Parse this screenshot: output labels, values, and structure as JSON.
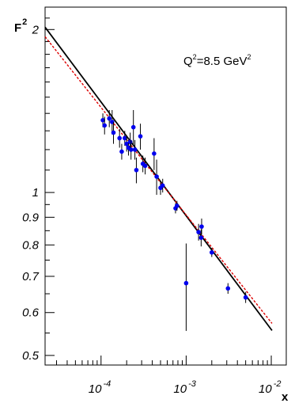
{
  "chart_data": {
    "type": "scatter",
    "title": "",
    "annotation": {
      "base": "Q",
      "sup": "2",
      "rest": "=8.5 GeV",
      "sup2": "2"
    },
    "xlabel": "x",
    "ylabel": {
      "base": "F",
      "sub": "2"
    },
    "x_scale": "log",
    "y_scale": "log",
    "xlim": [
      2.2e-05,
      0.015
    ],
    "ylim": [
      0.48,
      2.2
    ],
    "x_major_ticks": [
      {
        "value": 0.0001,
        "base": "10",
        "exp": "-4"
      },
      {
        "value": 0.001,
        "base": "10",
        "exp": "-3"
      },
      {
        "value": 0.01,
        "base": "10",
        "exp": "-2"
      }
    ],
    "y_tick_labels": [
      {
        "value": 2,
        "label": "2"
      },
      {
        "value": 1,
        "label": "1"
      },
      {
        "value": 0.9,
        "label": "0.9"
      },
      {
        "value": 0.8,
        "label": "0.8"
      },
      {
        "value": 0.7,
        "label": "0.7"
      },
      {
        "value": 0.6,
        "label": "0.6"
      },
      {
        "value": 0.5,
        "label": "0.5"
      }
    ],
    "grid": false,
    "series": [
      {
        "kind": "points",
        "color": "#0000ee",
        "points": [
          {
            "x": 0.000105,
            "y": 1.36,
            "err": 0.04
          },
          {
            "x": 0.00011,
            "y": 1.33,
            "err": 0.05
          },
          {
            "x": 0.000125,
            "y": 1.37,
            "err": 0.05
          },
          {
            "x": 0.000135,
            "y": 1.35,
            "err": 0.07
          },
          {
            "x": 0.00014,
            "y": 1.29,
            "err": 0.06
          },
          {
            "x": 0.000165,
            "y": 1.26,
            "err": 0.05
          },
          {
            "x": 0.000175,
            "y": 1.19,
            "err": 0.04
          },
          {
            "x": 0.00019,
            "y": 1.26,
            "err": 0.04
          },
          {
            "x": 0.0002,
            "y": 1.23,
            "err": 0.04
          },
          {
            "x": 0.00021,
            "y": 1.21,
            "err": 0.04
          },
          {
            "x": 0.00022,
            "y": 1.24,
            "err": 0.05
          },
          {
            "x": 0.000225,
            "y": 1.2,
            "err": 0.05
          },
          {
            "x": 0.00024,
            "y": 1.32,
            "err": 0.1
          },
          {
            "x": 0.00025,
            "y": 1.2,
            "err": 0.05
          },
          {
            "x": 0.00026,
            "y": 1.1,
            "err": 0.06
          },
          {
            "x": 0.00029,
            "y": 1.27,
            "err": 0.07
          },
          {
            "x": 0.00031,
            "y": 1.13,
            "err": 0.04
          },
          {
            "x": 0.00033,
            "y": 1.12,
            "err": 0.04
          },
          {
            "x": 0.00042,
            "y": 1.18,
            "err": 0.08
          },
          {
            "x": 0.00045,
            "y": 1.07,
            "err": 0.08
          },
          {
            "x": 0.0005,
            "y": 1.02,
            "err": 0.03
          },
          {
            "x": 0.00053,
            "y": 1.03,
            "err": 0.03
          },
          {
            "x": 0.00075,
            "y": 0.935,
            "err": 0.02
          },
          {
            "x": 0.00078,
            "y": 0.945,
            "err": 0.02
          },
          {
            "x": 0.001,
            "y": 0.68,
            "err": 0.125
          },
          {
            "x": 0.0014,
            "y": 0.845,
            "err": 0.03
          },
          {
            "x": 0.0015,
            "y": 0.825,
            "err": 0.03
          },
          {
            "x": 0.00152,
            "y": 0.865,
            "err": 0.03
          },
          {
            "x": 0.002,
            "y": 0.775,
            "err": 0.015
          },
          {
            "x": 0.0031,
            "y": 0.665,
            "err": 0.015
          },
          {
            "x": 0.005,
            "y": 0.64,
            "err": 0.015
          }
        ]
      },
      {
        "kind": "line",
        "color": "#000000",
        "style": "solid",
        "points": [
          {
            "x": 2.2e-05,
            "y": 2.02
          },
          {
            "x": 0.0102,
            "y": 0.556
          }
        ]
      },
      {
        "kind": "line",
        "color": "#dd0000",
        "style": "dashed",
        "points": [
          {
            "x": 2.2e-05,
            "y": 1.94
          },
          {
            "x": 0.0102,
            "y": 0.573
          }
        ]
      }
    ]
  }
}
